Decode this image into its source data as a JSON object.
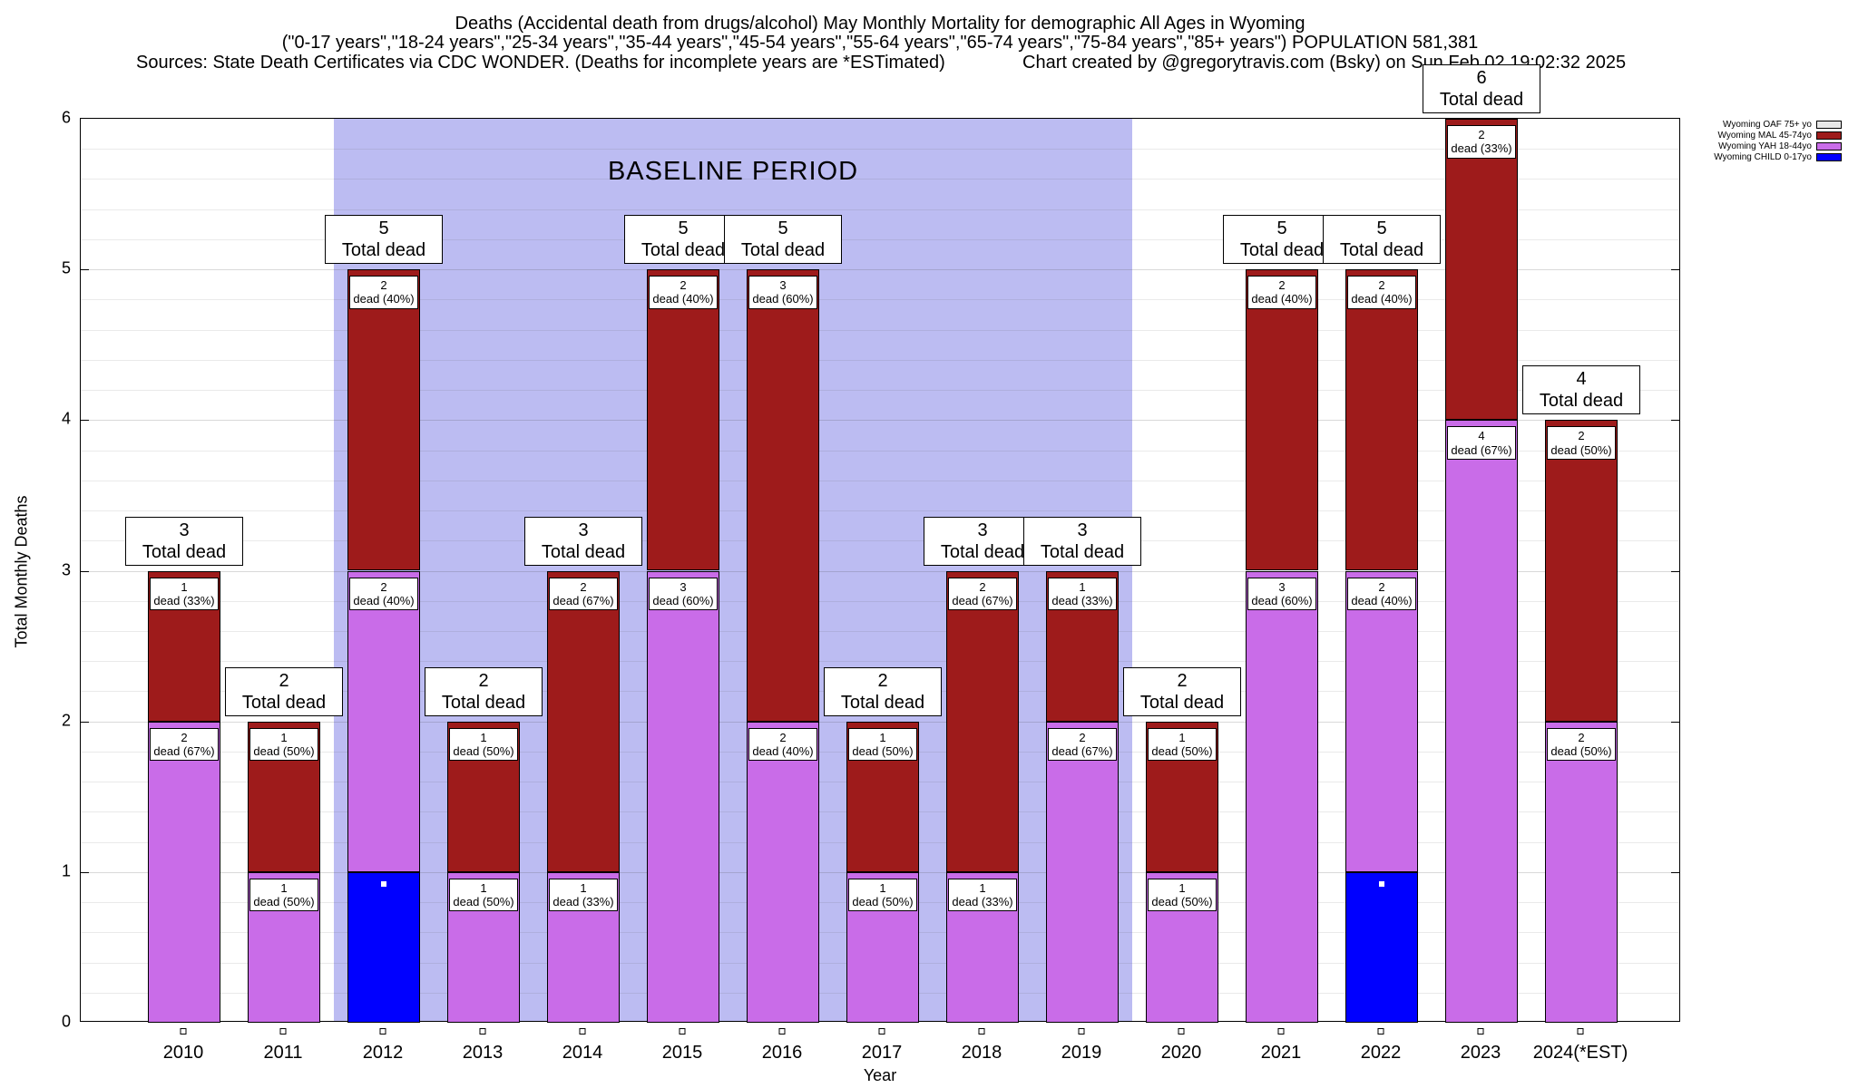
{
  "title": {
    "line1": "Deaths (Accidental death from drugs/alcohol) May Monthly Mortality for demographic All Ages in Wyoming",
    "line2": "(\"0-17 years\",\"18-24 years\",\"25-34 years\",\"35-44 years\",\"45-54 years\",\"55-64 years\",\"65-74 years\",\"75-84 years\",\"85+ years\") POPULATION 581,381",
    "line3_left": "Sources: State Death Certificates via CDC WONDER. (Deaths for incomplete years are *ESTimated)",
    "line3_right": "Chart created by @gregorytravis.com (Bsky) on Sun Feb 02 19:02:32 2025"
  },
  "chart_data": {
    "type": "bar",
    "stacked": true,
    "xlabel": "Year",
    "ylabel": "Total Monthly Deaths",
    "ylim": [
      0,
      6
    ],
    "yticks": [
      0,
      1,
      2,
      3,
      4,
      5,
      6
    ],
    "grid": true,
    "legend_position": "top-right",
    "total_label_text": "Total dead",
    "baseline_period": {
      "label": "BASELINE PERIOD",
      "from": "2012",
      "to": "2019",
      "color": "#bcbcf2"
    },
    "series_colors": {
      "OAF": "#e8e8e8",
      "MAL": "#9e1b1b",
      "YAH": "#c96ce8",
      "CHILD": "#0000ff"
    },
    "legend": [
      {
        "label": "Wyoming OAF 75+ yo",
        "series": "OAF",
        "color": "#e8e8e8"
      },
      {
        "label": "Wyoming MAL 45-74yo",
        "series": "MAL",
        "color": "#9e1b1b"
      },
      {
        "label": "Wyoming YAH 18-44yo",
        "series": "YAH",
        "color": "#c96ce8"
      },
      {
        "label": "Wyoming CHILD 0-17yo",
        "series": "CHILD",
        "color": "#0000ff"
      }
    ],
    "categories": [
      "2010",
      "2011",
      "2012",
      "2013",
      "2014",
      "2015",
      "2016",
      "2017",
      "2018",
      "2019",
      "2020",
      "2021",
      "2022",
      "2023",
      "2024(*EST)"
    ],
    "bars": [
      {
        "year": "2010",
        "total": 3,
        "segments": [
          {
            "series": "YAH",
            "value": 2,
            "label": {
              "count": "2",
              "pct": "dead (67%)"
            }
          },
          {
            "series": "MAL",
            "value": 1,
            "label": {
              "count": "1",
              "pct": "dead (33%)"
            }
          }
        ]
      },
      {
        "year": "2011",
        "total": 2,
        "segments": [
          {
            "series": "YAH",
            "value": 1,
            "label": {
              "count": "1",
              "pct": "dead (50%)"
            }
          },
          {
            "series": "MAL",
            "value": 1,
            "label": {
              "count": "1",
              "pct": "dead (50%)"
            }
          }
        ]
      },
      {
        "year": "2012",
        "total": 5,
        "segments": [
          {
            "series": "CHILD",
            "value": 1,
            "marker": true
          },
          {
            "series": "YAH",
            "value": 2,
            "label": {
              "count": "2",
              "pct": "dead (40%)"
            }
          },
          {
            "series": "MAL",
            "value": 2,
            "label": {
              "count": "2",
              "pct": "dead (40%)"
            }
          }
        ]
      },
      {
        "year": "2013",
        "total": 2,
        "segments": [
          {
            "series": "YAH",
            "value": 1,
            "label": {
              "count": "1",
              "pct": "dead (50%)"
            }
          },
          {
            "series": "MAL",
            "value": 1,
            "label": {
              "count": "1",
              "pct": "dead (50%)"
            }
          }
        ]
      },
      {
        "year": "2014",
        "total": 3,
        "segments": [
          {
            "series": "YAH",
            "value": 1,
            "label": {
              "count": "1",
              "pct": "dead (33%)"
            }
          },
          {
            "series": "MAL",
            "value": 2,
            "label": {
              "count": "2",
              "pct": "dead (67%)"
            }
          }
        ]
      },
      {
        "year": "2015",
        "total": 5,
        "segments": [
          {
            "series": "YAH",
            "value": 3,
            "label": {
              "count": "3",
              "pct": "dead (60%)"
            }
          },
          {
            "series": "MAL",
            "value": 2,
            "label": {
              "count": "2",
              "pct": "dead (40%)"
            }
          }
        ]
      },
      {
        "year": "2016",
        "total": 5,
        "segments": [
          {
            "series": "YAH",
            "value": 2,
            "label": {
              "count": "2",
              "pct": "dead (40%)"
            }
          },
          {
            "series": "MAL",
            "value": 3,
            "label": {
              "count": "3",
              "pct": "dead (60%)"
            }
          }
        ]
      },
      {
        "year": "2017",
        "total": 2,
        "segments": [
          {
            "series": "YAH",
            "value": 1,
            "label": {
              "count": "1",
              "pct": "dead (50%)"
            }
          },
          {
            "series": "MAL",
            "value": 1,
            "label": {
              "count": "1",
              "pct": "dead (50%)"
            }
          }
        ]
      },
      {
        "year": "2018",
        "total": 3,
        "segments": [
          {
            "series": "YAH",
            "value": 1,
            "label": {
              "count": "1",
              "pct": "dead (33%)"
            }
          },
          {
            "series": "MAL",
            "value": 2,
            "label": {
              "count": "2",
              "pct": "dead (67%)"
            }
          }
        ]
      },
      {
        "year": "2019",
        "total": 3,
        "segments": [
          {
            "series": "YAH",
            "value": 2,
            "label": {
              "count": "2",
              "pct": "dead (67%)"
            }
          },
          {
            "series": "MAL",
            "value": 1,
            "label": {
              "count": "1",
              "pct": "dead (33%)"
            }
          }
        ]
      },
      {
        "year": "2020",
        "total": 2,
        "segments": [
          {
            "series": "YAH",
            "value": 1,
            "label": {
              "count": "1",
              "pct": "dead (50%)"
            }
          },
          {
            "series": "MAL",
            "value": 1,
            "label": {
              "count": "1",
              "pct": "dead (50%)"
            }
          }
        ]
      },
      {
        "year": "2021",
        "total": 5,
        "segments": [
          {
            "series": "YAH",
            "value": 3,
            "label": {
              "count": "3",
              "pct": "dead (60%)"
            }
          },
          {
            "series": "MAL",
            "value": 2,
            "label": {
              "count": "2",
              "pct": "dead (40%)"
            }
          }
        ]
      },
      {
        "year": "2022",
        "total": 5,
        "segments": [
          {
            "series": "CHILD",
            "value": 1,
            "marker": true
          },
          {
            "series": "YAH",
            "value": 2,
            "label": {
              "count": "2",
              "pct": "dead (40%)"
            }
          },
          {
            "series": "MAL",
            "value": 2,
            "label": {
              "count": "2",
              "pct": "dead (40%)"
            }
          }
        ]
      },
      {
        "year": "2023",
        "total": 6,
        "segments": [
          {
            "series": "YAH",
            "value": 4,
            "label": {
              "count": "4",
              "pct": "dead (67%)"
            }
          },
          {
            "series": "MAL",
            "value": 2,
            "label": {
              "count": "2",
              "pct": "dead (33%)"
            }
          }
        ]
      },
      {
        "year": "2024(*EST)",
        "total": 4,
        "segments": [
          {
            "series": "YAH",
            "value": 2,
            "label": {
              "count": "2",
              "pct": "dead (50%)"
            }
          },
          {
            "series": "MAL",
            "value": 2,
            "label": {
              "count": "2",
              "pct": "dead (50%)"
            }
          }
        ]
      }
    ]
  }
}
